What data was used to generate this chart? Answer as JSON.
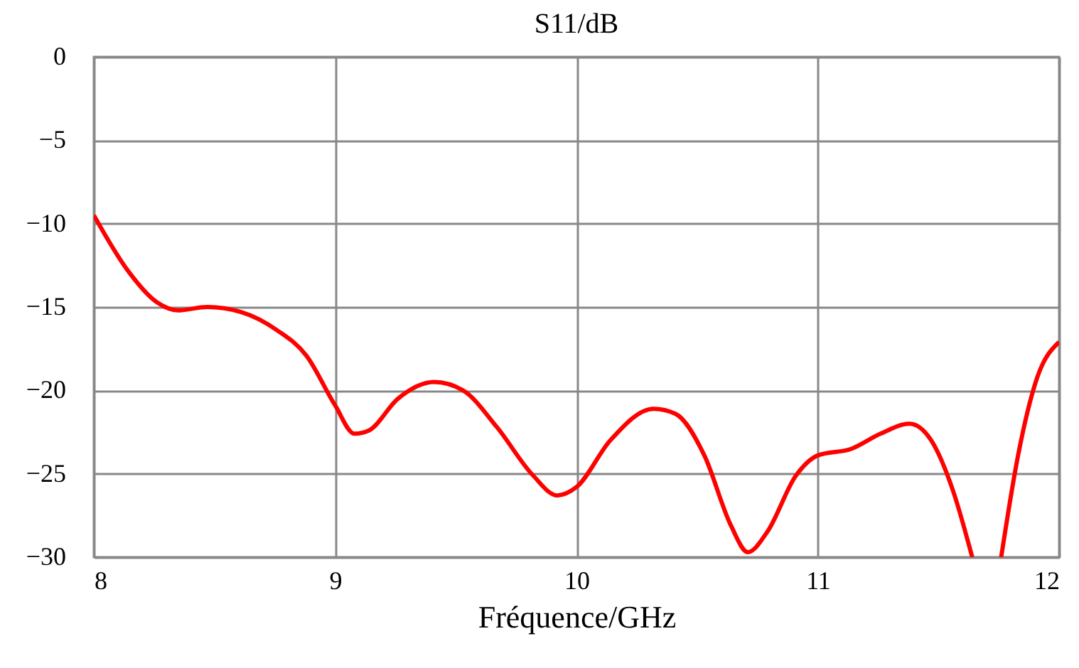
{
  "chart_data": {
    "type": "line",
    "title": "S11/dB",
    "xlabel": "Fréquence/GHz",
    "x": [
      8,
      8.14,
      8.26,
      8.35,
      8.47,
      8.61,
      8.76,
      8.88,
      9.0,
      9.08,
      9.14,
      9.26,
      9.41,
      9.53,
      9.67,
      9.82,
      9.92,
      10.0,
      10.14,
      10.32,
      10.41,
      10.53,
      10.64,
      10.71,
      10.79,
      10.91,
      11.0,
      11.14,
      11.26,
      11.38,
      11.47,
      11.56,
      11.64,
      11.7,
      11.76,
      11.83,
      11.91,
      12.0
    ],
    "series": [
      {
        "color": "#ff0000",
        "values": [
          -9.5,
          -12.8,
          -14.7,
          -15.2,
          -15.0,
          -15.3,
          -16.4,
          -17.9,
          -20.9,
          -22.6,
          -22.4,
          -20.5,
          -19.5,
          -20.0,
          -22.2,
          -25.1,
          -26.3,
          -25.8,
          -23.0,
          -21.1,
          -21.4,
          -23.9,
          -28.1,
          -29.7,
          -28.5,
          -25.1,
          -23.9,
          -23.5,
          -22.6,
          -22.0,
          -23.0,
          -26.0,
          -30,
          null,
          -30,
          -23.9,
          -19.2,
          -17.1
        ]
      }
    ],
    "xlim": [
      8,
      12
    ],
    "xticks": [
      8,
      9,
      10,
      11,
      12
    ],
    "ylim": [
      -30,
      0
    ],
    "yticks": [
      0,
      -5,
      -10,
      -15,
      -20,
      -25,
      -30
    ],
    "grid": true,
    "legend": false,
    "marker": "none",
    "line_style": "solid"
  }
}
